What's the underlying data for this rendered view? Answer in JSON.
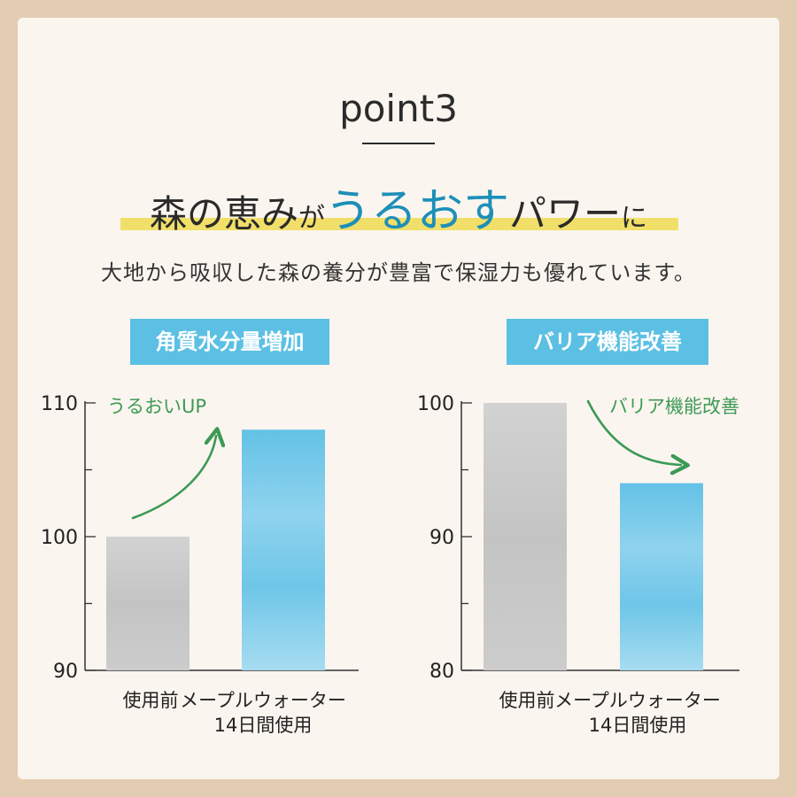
{
  "heading": {
    "point": "point3",
    "line_parts": [
      "森の恵み",
      "が",
      "うるおす",
      "パワー",
      "に"
    ],
    "subtitle": "大地から吸収した森の養分が豊富で保湿力も優れています。"
  },
  "colors": {
    "accent": "#1d8fb8",
    "label_box": "#5cc0e4",
    "highlight": "#f1df69",
    "arrow": "#3c9a55",
    "bar_before": "#c6c6c6",
    "bar_after": "#77c8e6"
  },
  "chart_data": [
    {
      "type": "bar",
      "title": "角質水分量増加",
      "categories": [
        "使用前",
        "メープルウォーター 14日間使用"
      ],
      "category_lines": [
        [
          "使用前"
        ],
        [
          "メープルウォーター",
          "14日間使用"
        ]
      ],
      "values": [
        100,
        108
      ],
      "ylim": [
        90,
        110
      ],
      "yticks": [
        90,
        100,
        110
      ],
      "annotation": "うるおいUP"
    },
    {
      "type": "bar",
      "title": "バリア機能改善",
      "categories": [
        "使用前",
        "メープルウォーター 14日間使用"
      ],
      "category_lines": [
        [
          "使用前"
        ],
        [
          "メープルウォーター",
          "14日間使用"
        ]
      ],
      "values": [
        100,
        94
      ],
      "ylim": [
        80,
        100
      ],
      "yticks": [
        80,
        90,
        100
      ],
      "annotation": "バリア機能改善"
    }
  ]
}
